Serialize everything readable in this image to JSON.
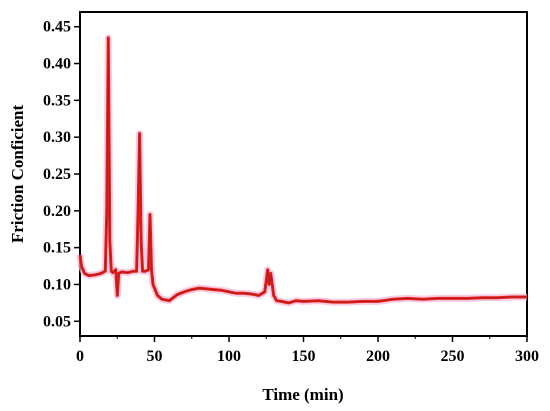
{
  "chart_data": {
    "type": "line",
    "title": "",
    "xlabel": "Time (min)",
    "ylabel": "Friction Conficient",
    "xlim": [
      0,
      300
    ],
    "ylim": [
      0.03,
      0.47
    ],
    "x_ticks": [
      0,
      50,
      100,
      150,
      200,
      250,
      300
    ],
    "y_ticks": [
      0.05,
      0.1,
      0.15,
      0.2,
      0.25,
      0.3,
      0.35,
      0.4,
      0.45
    ],
    "grid": false,
    "legend": "none",
    "series": [
      {
        "color": "#e8201c",
        "x": [
          0,
          1,
          3,
          6,
          10,
          14,
          17,
          18,
          19,
          20,
          21,
          22,
          24,
          25,
          26,
          28,
          32,
          36,
          38,
          39,
          40,
          41,
          42,
          44,
          46,
          47,
          48,
          49,
          50,
          52,
          55,
          60,
          65,
          70,
          75,
          80,
          85,
          90,
          95,
          100,
          105,
          110,
          115,
          120,
          124,
          126,
          127,
          128,
          130,
          132,
          135,
          140,
          145,
          150,
          160,
          170,
          180,
          190,
          200,
          210,
          220,
          230,
          240,
          250,
          260,
          270,
          280,
          290,
          300
        ],
        "y": [
          0.14,
          0.125,
          0.115,
          0.112,
          0.113,
          0.115,
          0.118,
          0.2,
          0.435,
          0.16,
          0.118,
          0.116,
          0.12,
          0.085,
          0.115,
          0.117,
          0.116,
          0.118,
          0.118,
          0.2,
          0.305,
          0.16,
          0.118,
          0.118,
          0.12,
          0.195,
          0.12,
          0.1,
          0.095,
          0.085,
          0.08,
          0.078,
          0.086,
          0.09,
          0.093,
          0.095,
          0.094,
          0.093,
          0.092,
          0.09,
          0.088,
          0.088,
          0.087,
          0.085,
          0.09,
          0.12,
          0.1,
          0.115,
          0.085,
          0.078,
          0.077,
          0.075,
          0.078,
          0.077,
          0.078,
          0.076,
          0.076,
          0.077,
          0.077,
          0.08,
          0.081,
          0.08,
          0.081,
          0.081,
          0.081,
          0.082,
          0.082,
          0.083,
          0.083
        ]
      }
    ]
  }
}
